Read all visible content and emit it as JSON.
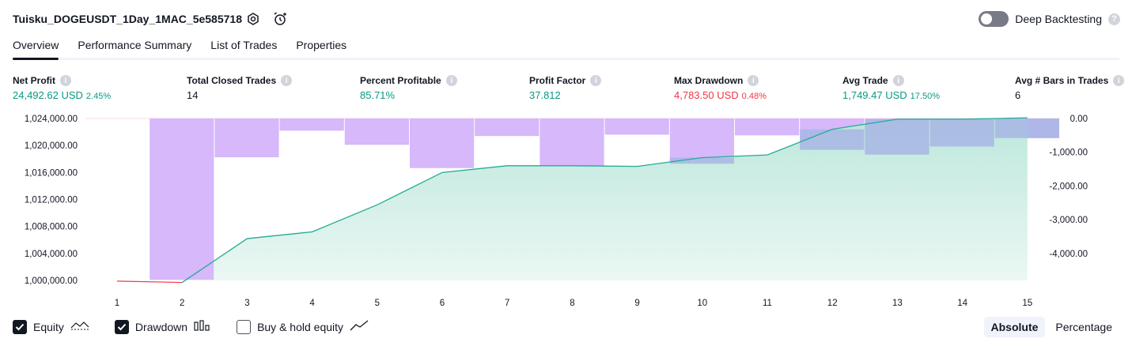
{
  "header": {
    "strategy_name": "Tuisku_DOGEUSDT_1Day_1MAC_5e585718",
    "deep_backtesting_label": "Deep Backtesting",
    "help_symbol": "?"
  },
  "tabs": [
    {
      "label": "Overview",
      "active": true
    },
    {
      "label": "Performance Summary",
      "active": false
    },
    {
      "label": "List of Trades",
      "active": false
    },
    {
      "label": "Properties",
      "active": false
    }
  ],
  "metrics": [
    {
      "label": "Net Profit",
      "value": "24,492.62 USD",
      "pct": "2.45%",
      "color": "#089981"
    },
    {
      "label": "Total Closed Trades",
      "value": "14",
      "pct": "",
      "color": "#131722"
    },
    {
      "label": "Percent Profitable",
      "value": "85.71%",
      "pct": "",
      "color": "#089981"
    },
    {
      "label": "Profit Factor",
      "value": "37.812",
      "pct": "",
      "color": "#089981"
    },
    {
      "label": "Max Drawdown",
      "value": "4,783.50 USD",
      "pct": "0.48%",
      "color": "#f23645"
    },
    {
      "label": "Avg Trade",
      "value": "1,749.47 USD",
      "pct": "17.50%",
      "color": "#089981"
    },
    {
      "label": "Avg # Bars in Trades",
      "value": "6",
      "pct": "",
      "color": "#131722"
    }
  ],
  "info_symbol": "i",
  "chart_data": {
    "type": "area",
    "x": [
      1,
      2,
      3,
      4,
      5,
      6,
      7,
      8,
      9,
      10,
      11,
      12,
      13,
      14,
      15
    ],
    "left_axis": {
      "ticks": [
        "1,024,000.00",
        "1,020,000.00",
        "1,016,000.00",
        "1,012,000.00",
        "1,008,000.00",
        "1,004,000.00",
        "1,000,000.00"
      ],
      "ylim": [
        1000000,
        1024000
      ]
    },
    "right_axis": {
      "ticks": [
        "0.00",
        "-1,000.00",
        "-2,000.00",
        "-3,000.00",
        "-4,000.00"
      ],
      "ylim": [
        -4800,
        0
      ]
    },
    "series": [
      {
        "name": "Equity",
        "axis": "left",
        "values": [
          999900,
          999700,
          1006200,
          1007200,
          1011200,
          1016000,
          1017000,
          1017000,
          1016900,
          1018200,
          1018600,
          1022400,
          1023900,
          1023900,
          1024100
        ]
      },
      {
        "name": "Drawdown",
        "axis": "right",
        "values": [
          0,
          -4783.5,
          -1150,
          -360,
          -780,
          -1470,
          -520,
          -1410,
          -480,
          -1340,
          -500,
          -930,
          -1070,
          -830,
          -580
        ]
      }
    ],
    "colors": {
      "equity_line": "#22ab94",
      "equity_fill_top": "#b9e6da",
      "equity_fill_bottom": "#eaf7f3",
      "initial_line": "#f23645",
      "drawdown_bar": "#d6b8fb",
      "overlap_bar": "#a8b6e4"
    },
    "legend": "bottom-left",
    "grid": false
  },
  "legend": {
    "equity_label": "Equity",
    "drawdown_label": "Drawdown",
    "buy_hold_label": "Buy & hold equity"
  },
  "mode": {
    "absolute_label": "Absolute",
    "percentage_label": "Percentage"
  }
}
